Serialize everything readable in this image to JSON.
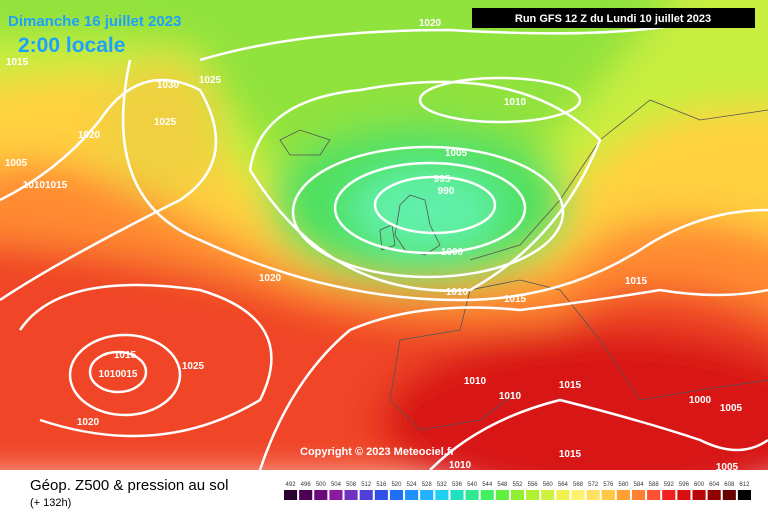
{
  "header": {
    "date": "Dimanche 16 juillet 2023",
    "time": "2:00 locale",
    "run": "Run GFS 12 Z du Lundi 10 juillet 2023"
  },
  "footer": {
    "title": "Géop. Z500 & pression au sol",
    "lead": "(+ 132h)",
    "copyright": "Copyright © 2023 Meteociel.fr"
  },
  "isobar_labels": [
    "1020",
    "1015",
    "1030",
    "1025",
    "1025",
    "1020",
    "1005",
    "10101015",
    "1010",
    "1005",
    "995",
    "990",
    "1000",
    "1020",
    "1010",
    "1015",
    "1015",
    "1015",
    "1010015",
    "1025",
    "1020",
    "1010",
    "1010",
    "1015",
    "1010",
    "1015",
    "1000",
    "1005",
    "1005"
  ],
  "legend": {
    "values": [
      492,
      496,
      500,
      504,
      508,
      512,
      516,
      520,
      524,
      528,
      532,
      536,
      540,
      544,
      548,
      552,
      556,
      560,
      564,
      568,
      572,
      576,
      580,
      584,
      588,
      592,
      596,
      600,
      604,
      608,
      612
    ],
    "colors": [
      "#2a0030",
      "#4b0052",
      "#6a0a7a",
      "#8a1aa0",
      "#7030c0",
      "#5040d8",
      "#2f50e8",
      "#1e6ff5",
      "#1f90ff",
      "#22b0ff",
      "#20d0f0",
      "#20e0c0",
      "#30e890",
      "#40f060",
      "#60f040",
      "#90f030",
      "#b0f030",
      "#d0f040",
      "#f0f050",
      "#fff070",
      "#ffe060",
      "#ffc840",
      "#ffa030",
      "#ff8030",
      "#ff5030",
      "#f02020",
      "#d81010",
      "#b80808",
      "#900000",
      "#680000",
      "#000000"
    ]
  }
}
